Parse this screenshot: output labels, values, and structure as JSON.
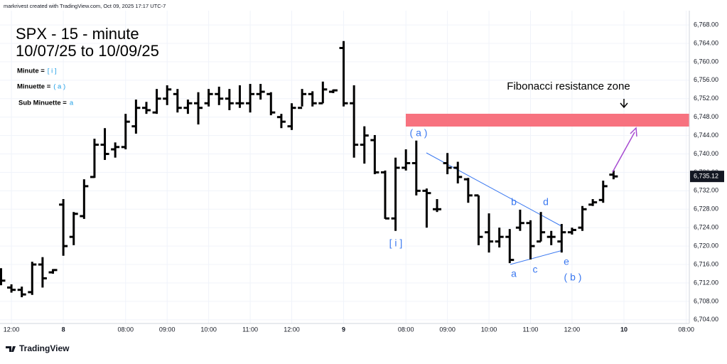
{
  "header": {
    "credit": "markrivest created with TradingView.com, Oct 09, 2025 17:17 UTC-7",
    "title": "SPX - 15 - minute",
    "subtitle": "10/07/25 to 10/09/25",
    "legend": [
      {
        "label": "Minute = ",
        "symbol": "[ i ]"
      },
      {
        "label": "Minuette = ",
        "symbol": "( a )"
      },
      {
        "label": "Sub Minuette = ",
        "symbol": "a"
      }
    ]
  },
  "annotations": {
    "fib": "Fibonacci resistance zone",
    "waves": [
      "( a )",
      "[ i ]",
      "b",
      "d",
      "a",
      "c",
      "e",
      "( b )"
    ]
  },
  "footer": {
    "brand": "TradingView"
  },
  "chart_data": {
    "type": "ohlc",
    "color": "#000000",
    "grid": true,
    "x": [
      -6,
      -5,
      -4,
      -3,
      -2,
      -1,
      0,
      1,
      2,
      3,
      4,
      5,
      6,
      7,
      8,
      9,
      10,
      11,
      12,
      13,
      14,
      15,
      16,
      17,
      18,
      19,
      20,
      21,
      22,
      23,
      24,
      25,
      26,
      27,
      28,
      29,
      30,
      31,
      32,
      33,
      34,
      35,
      36,
      37,
      38,
      39,
      40,
      41,
      42,
      43,
      44,
      45,
      46,
      47,
      48,
      49,
      50,
      51,
      52,
      53
    ],
    "open": [
      6714.5,
      6711,
      6710.5,
      6710,
      6716,
      6714.3,
      6729,
      6722,
      6726.5,
      6735,
      6742,
      6741,
      6741.5,
      6746,
      6750,
      6749,
      6752,
      6753,
      6750,
      6751,
      6751,
      6753,
      6752,
      6751,
      6751,
      6753,
      6753,
      6748,
      6746,
      6750,
      6753,
      6751,
      6753.5,
      6763,
      6751,
      6742,
      6743,
      6736,
      6726,
      6737,
      6738,
      6732,
      6728,
      6738,
      6737,
      6734.5,
      6731,
      6723,
      6721,
      6722,
      6724,
      6725,
      6721,
      6722,
      6721,
      6723,
      6724,
      6729,
      6730,
      6735.5
    ],
    "high": [
      6715.2,
      6711.7,
      6711.2,
      6716.6,
      6717.6,
      6715,
      6730.2,
      6727.4,
      6734.5,
      6743.3,
      6745.6,
      6742.5,
      6748.7,
      6751.8,
      6751.3,
      6754.1,
      6754.9,
      6754.1,
      6751.8,
      6753.4,
      6754.1,
      6754.6,
      6754.1,
      6754.9,
      6755.2,
      6755.2,
      6753.4,
      6748.7,
      6751,
      6754.1,
      6753.6,
      6755.7,
      6754,
      6764.5,
      6754.9,
      6746,
      6744.1,
      6736.4,
      6739.2,
      6741,
      6742.9,
      6732.5,
      6730.2,
      6740.2,
      6738.3,
      6734.8,
      6731,
      6727.1,
      6724,
      6723.7,
      6727.9,
      6725.6,
      6727.4,
      6723.3,
      6724.8,
      6724,
      6728.7,
      6730.2,
      6734.2,
      6736.4
    ],
    "low": [
      6711.5,
      6709.9,
      6708.9,
      6709.4,
      6711,
      6714,
      6717.9,
      6720.2,
      6725.9,
      6734.8,
      6738.7,
      6739.2,
      6741,
      6744.4,
      6748.7,
      6748.7,
      6750.6,
      6749,
      6748.7,
      6746.4,
      6750.3,
      6750.6,
      6749.5,
      6750,
      6749,
      6751.8,
      6748.4,
      6745.6,
      6745.2,
      6750.3,
      6750.3,
      6751,
      6753.2,
      6750.3,
      6739.2,
      6737.9,
      6735.6,
      6725.9,
      6723.3,
      6736.4,
      6731,
      6724,
      6727.4,
      6735.6,
      6733.6,
      6729.4,
      6720.2,
      6718.6,
      6719.7,
      6716.3,
      6723.3,
      6717.1,
      6721,
      6720.2,
      6718.6,
      6722.5,
      6723.3,
      6728.7,
      6729.4,
      6734.5
    ],
    "close": [
      6712.5,
      6710.5,
      6709.5,
      6716,
      6713,
      6714.8,
      6720,
      6727,
      6733,
      6742,
      6740,
      6741.5,
      6747,
      6750,
      6749.5,
      6752,
      6754,
      6750,
      6751,
      6750,
      6753,
      6752,
      6751,
      6751,
      6753,
      6753.5,
      6749,
      6747,
      6750,
      6753,
      6751,
      6754,
      6753.8,
      6751,
      6742,
      6744,
      6736,
      6726,
      6737,
      6738,
      6732,
      6731.5,
      6728,
      6737,
      6735,
      6731,
      6722,
      6721,
      6722,
      6717,
      6725,
      6720,
      6723,
      6722,
      6723,
      6723.5,
      6728,
      6729.5,
      6733,
      6735.12
    ],
    "last_price": {
      "value": 6735.12,
      "label": "6,735.12"
    },
    "xlim": [
      -6.1,
      60.3
    ],
    "xticks": [
      {
        "value": -5,
        "label": "12:00"
      },
      {
        "value": 0,
        "label": "8"
      },
      {
        "value": 6,
        "label": "08:00"
      },
      {
        "value": 10,
        "label": "09:00"
      },
      {
        "value": 14,
        "label": "10:00"
      },
      {
        "value": 18,
        "label": "11:00"
      },
      {
        "value": 22,
        "label": "12:00"
      },
      {
        "value": 27,
        "label": "9"
      },
      {
        "value": 33,
        "label": "08:00"
      },
      {
        "value": 37,
        "label": "09:00"
      },
      {
        "value": 41,
        "label": "10:00"
      },
      {
        "value": 45,
        "label": "11:00"
      },
      {
        "value": 49,
        "label": "12:00"
      },
      {
        "value": 54,
        "label": "10"
      },
      {
        "value": 60,
        "label": "08:00"
      }
    ],
    "ylim": [
      6703.2,
      6771.1
    ],
    "yticks": [
      {
        "value": 6704,
        "label": "6,704.00"
      },
      {
        "value": 6708,
        "label": "6,708.00"
      },
      {
        "value": 6712,
        "label": "6,712.00"
      },
      {
        "value": 6716,
        "label": "6,716.00"
      },
      {
        "value": 6720,
        "label": "6,720.00"
      },
      {
        "value": 6724,
        "label": "6,724.00"
      },
      {
        "value": 6728,
        "label": "6,728.00"
      },
      {
        "value": 6732,
        "label": "6,732.00"
      },
      {
        "value": 6736,
        "label": "6,736.00"
      },
      {
        "value": 6740,
        "label": "6,740.00"
      },
      {
        "value": 6744,
        "label": "6,744.00"
      },
      {
        "value": 6748,
        "label": "6,748.00"
      },
      {
        "value": 6752,
        "label": "6,752.00"
      },
      {
        "value": 6756,
        "label": "6,756.00"
      },
      {
        "value": 6760,
        "label": "6,760.00"
      },
      {
        "value": 6764,
        "label": "6,764.00"
      },
      {
        "value": 6768,
        "label": "6,768.00"
      }
    ]
  }
}
